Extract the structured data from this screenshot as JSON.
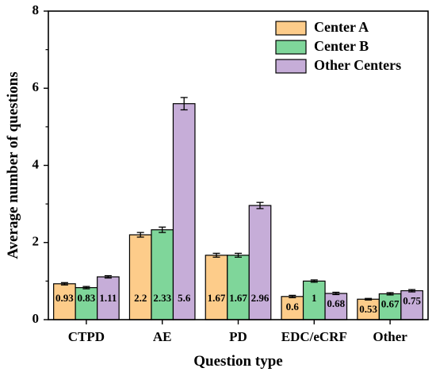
{
  "chart_data": {
    "type": "bar",
    "categories": [
      "CTPD",
      "AE",
      "PD",
      "EDC/eCRF",
      "Other"
    ],
    "series": [
      {
        "name": "Center A",
        "color": "#fdcc8a",
        "values": [
          0.93,
          2.2,
          1.67,
          0.6,
          0.53
        ],
        "errors": [
          0.03,
          0.06,
          0.05,
          0.03,
          0.02
        ],
        "labels": [
          "0.93",
          "2.2",
          "1.67",
          "0.6",
          "0.53"
        ]
      },
      {
        "name": "Center B",
        "color": "#7fd69a",
        "values": [
          0.83,
          2.33,
          1.67,
          1.0,
          0.67
        ],
        "errors": [
          0.03,
          0.07,
          0.05,
          0.03,
          0.03
        ],
        "labels": [
          "0.83",
          "2.33",
          "1.67",
          "1",
          "0.67"
        ]
      },
      {
        "name": "Other Centers",
        "color": "#c6add8",
        "values": [
          1.11,
          5.6,
          2.96,
          0.68,
          0.75
        ],
        "errors": [
          0.03,
          0.16,
          0.08,
          0.03,
          0.03
        ],
        "labels": [
          "1.11",
          "5.6",
          "2.96",
          "0.68",
          "0.75"
        ]
      }
    ],
    "xlabel": "Question type",
    "ylabel": "Average number of questions",
    "ylim": [
      0,
      8
    ],
    "yticks": [
      "0",
      "2",
      "4",
      "6",
      "8"
    ],
    "grid": false,
    "legend_position": "top-right"
  }
}
